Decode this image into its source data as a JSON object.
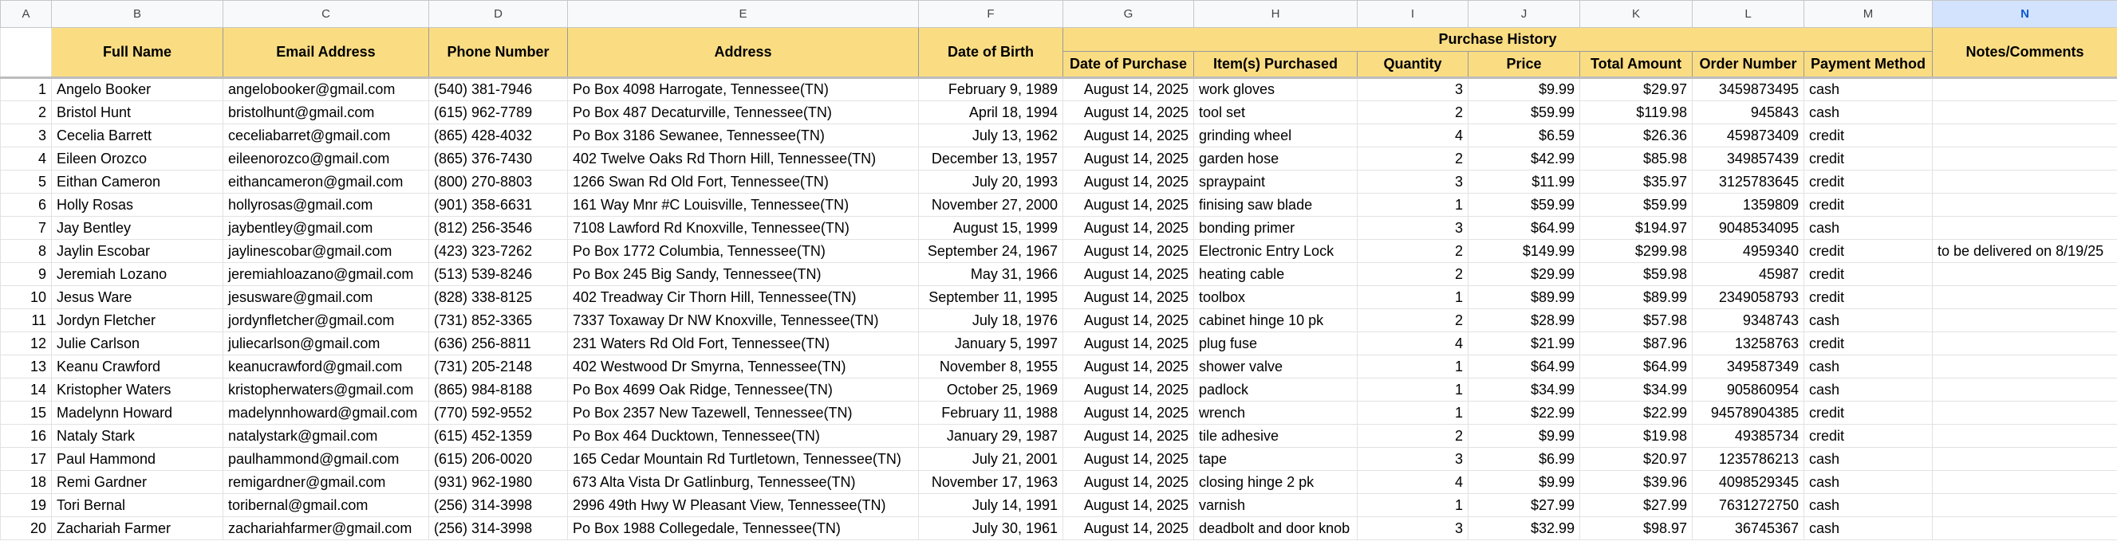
{
  "column_letters": [
    "A",
    "B",
    "C",
    "D",
    "E",
    "F",
    "G",
    "H",
    "I",
    "J",
    "K",
    "L",
    "M",
    "N"
  ],
  "selected_column": "N",
  "headers": [
    "Full Name",
    "Email Address",
    "Phone Number",
    "Address",
    "Date of Birth"
  ],
  "purchase_history": {
    "title": "Purchase History",
    "columns": [
      "Date of Purchase",
      "Item(s) Purchased",
      "Quantity",
      "Price",
      "Total Amount",
      "Order Number",
      "Payment Method"
    ]
  },
  "notes_header": "Notes/Comments",
  "rows": [
    [
      "1",
      "Angelo Booker",
      "angelobooker@gmail.com",
      "(540) 381-7946",
      "Po Box 4098 Harrogate, Tennessee(TN)",
      "February 9, 1989",
      "August 14, 2025",
      "work gloves",
      "3",
      "$9.99",
      "$29.97",
      "3459873495",
      "cash"
    ],
    [
      "2",
      "Bristol Hunt",
      "bristolhunt@gmail.com",
      "(615) 962-7789",
      "Po Box 487 Decaturville, Tennessee(TN)",
      "April 18, 1994",
      "August 14, 2025",
      "tool set",
      "2",
      "$59.99",
      "$119.98",
      "945843",
      "cash"
    ],
    [
      "3",
      "Cecelia Barrett",
      "ceceliabarret@gmail.com",
      "(865) 428-4032",
      "Po Box 3186 Sewanee, Tennessee(TN)",
      "July 13, 1962",
      "August 14, 2025",
      "grinding wheel",
      "4",
      "$6.59",
      "$26.36",
      "459873409",
      "credit"
    ],
    [
      "4",
      "Eileen Orozco",
      "eileenorozco@gmail.com",
      "(865) 376-7430",
      "402 Twelve Oaks Rd Thorn Hill, Tennessee(TN)",
      "December 13, 1957",
      "August 14, 2025",
      "garden hose",
      "2",
      "$42.99",
      "$85.98",
      "349857439",
      "credit"
    ],
    [
      "5",
      "Eithan Cameron",
      "eithancameron@gmail.com",
      "(800) 270-8803",
      "1266 Swan Rd Old Fort, Tennessee(TN)",
      "July 20, 1993",
      "August 14, 2025",
      "spraypaint",
      "3",
      "$11.99",
      "$35.97",
      "3125783645",
      "credit"
    ],
    [
      "6",
      "Holly Rosas",
      "hollyrosas@gmail.com",
      "(901) 358-6631",
      "161 Way Mnr #C Louisville, Tennessee(TN)",
      "November 27, 2000",
      "August 14, 2025",
      "finising saw blade",
      "1",
      "$59.99",
      "$59.99",
      "1359809",
      "credit"
    ],
    [
      "7",
      "Jay Bentley",
      "jaybentley@gmail.com",
      "(812) 256-3546",
      "7108 Lawford Rd Knoxville, Tennessee(TN)",
      "August 15, 1999",
      "August 14, 2025",
      "bonding primer",
      "3",
      "$64.99",
      "$194.97",
      "9048534095",
      "cash"
    ],
    [
      "8",
      "Jaylin Escobar",
      "jaylinescobar@gmail.com",
      "(423) 323-7262",
      "Po Box 1772 Columbia, Tennessee(TN)",
      "September 24, 1967",
      "August 14, 2025",
      "Electronic Entry Lock",
      "2",
      "$149.99",
      "$299.98",
      "4959340",
      "credit",
      "to be delivered on 8/19/25"
    ],
    [
      "9",
      "Jeremiah Lozano",
      "jeremiahloazano@gmail.com",
      "(513) 539-8246",
      "Po Box 245 Big Sandy, Tennessee(TN)",
      "May 31, 1966",
      "August 14, 2025",
      "heating cable",
      "2",
      "$29.99",
      "$59.98",
      "45987",
      "credit"
    ],
    [
      "10",
      "Jesus Ware",
      "jesusware@gmail.com",
      "(828) 338-8125",
      "402 Treadway Cir Thorn Hill, Tennessee(TN)",
      "September 11, 1995",
      "August 14, 2025",
      "toolbox",
      "1",
      "$89.99",
      "$89.99",
      "2349058793",
      "credit"
    ],
    [
      "11",
      "Jordyn Fletcher",
      "jordynfletcher@gmail.com",
      "(731) 852-3365",
      "7337 Toxaway Dr NW Knoxville, Tennessee(TN)",
      "July 18, 1976",
      "August 14, 2025",
      "cabinet hinge 10 pk",
      "2",
      "$28.99",
      "$57.98",
      "9348743",
      "cash"
    ],
    [
      "12",
      "Julie Carlson",
      "juliecarlson@gmail.com",
      "(636) 256-8811",
      "231 Waters Rd Old Fort, Tennessee(TN)",
      "January 5, 1997",
      "August 14, 2025",
      "plug fuse",
      "4",
      "$21.99",
      "$87.96",
      "13258763",
      "credit"
    ],
    [
      "13",
      "Keanu Crawford",
      "keanucrawford@gmail.com",
      "(731) 205-2148",
      "402 Westwood Dr Smyrna, Tennessee(TN)",
      "November 8, 1955",
      "August 14, 2025",
      "shower valve",
      "1",
      "$64.99",
      "$64.99",
      "349587349",
      "cash"
    ],
    [
      "14",
      "Kristopher Waters",
      "kristopherwaters@gmail.com",
      "(865) 984-8188",
      "Po Box 4699 Oak Ridge, Tennessee(TN)",
      "October 25, 1969",
      "August 14, 2025",
      "padlock",
      "1",
      "$34.99",
      "$34.99",
      "905860954",
      "cash"
    ],
    [
      "15",
      "Madelynn Howard",
      "madelynnhoward@gmail.com",
      "(770) 592-9552",
      "Po Box 2357 New Tazewell, Tennessee(TN)",
      "February 11, 1988",
      "August 14, 2025",
      "wrench",
      "1",
      "$22.99",
      "$22.99",
      "94578904385",
      "credit"
    ],
    [
      "16",
      "Nataly Stark",
      "natalystark@gmail.com",
      "(615) 452-1359",
      "Po Box 464 Ducktown, Tennessee(TN)",
      "January 29, 1987",
      "August 14, 2025",
      "tile adhesive",
      "2",
      "$9.99",
      "$19.98",
      "49385734",
      "credit"
    ],
    [
      "17",
      "Paul Hammond",
      "paulhammond@gmail.com",
      "(615) 206-0020",
      "165 Cedar Mountain Rd Turtletown, Tennessee(TN)",
      "July 21, 2001",
      "August 14, 2025",
      "tape",
      "3",
      "$6.99",
      "$20.97",
      "1235786213",
      "cash"
    ],
    [
      "18",
      "Remi Gardner",
      "remigardner@gmail.com",
      "(931) 962-1980",
      "673 Alta Vista Dr Gatlinburg, Tennessee(TN)",
      "November 17, 1963",
      "August 14, 2025",
      "closing hinge 2 pk",
      "4",
      "$9.99",
      "$39.96",
      "4098529345",
      "cash"
    ],
    [
      "19",
      "Tori Bernal",
      "toribernal@gmail.com",
      "(256) 314-3998",
      "2996 49th Hwy W Pleasant View, Tennessee(TN)",
      "July 14, 1991",
      "August 14, 2025",
      "varnish",
      "1",
      "$27.99",
      "$27.99",
      "7631272750",
      "cash"
    ],
    [
      "20",
      "Zachariah Farmer",
      "zachariahfarmer@gmail.com",
      "(256) 314-3998",
      "Po Box 1988 Collegedale, Tennessee(TN)",
      "July 30, 1961",
      "August 14, 2025",
      "deadbolt and door knob",
      "3",
      "$32.99",
      "$98.97",
      "36745367",
      "cash"
    ]
  ]
}
